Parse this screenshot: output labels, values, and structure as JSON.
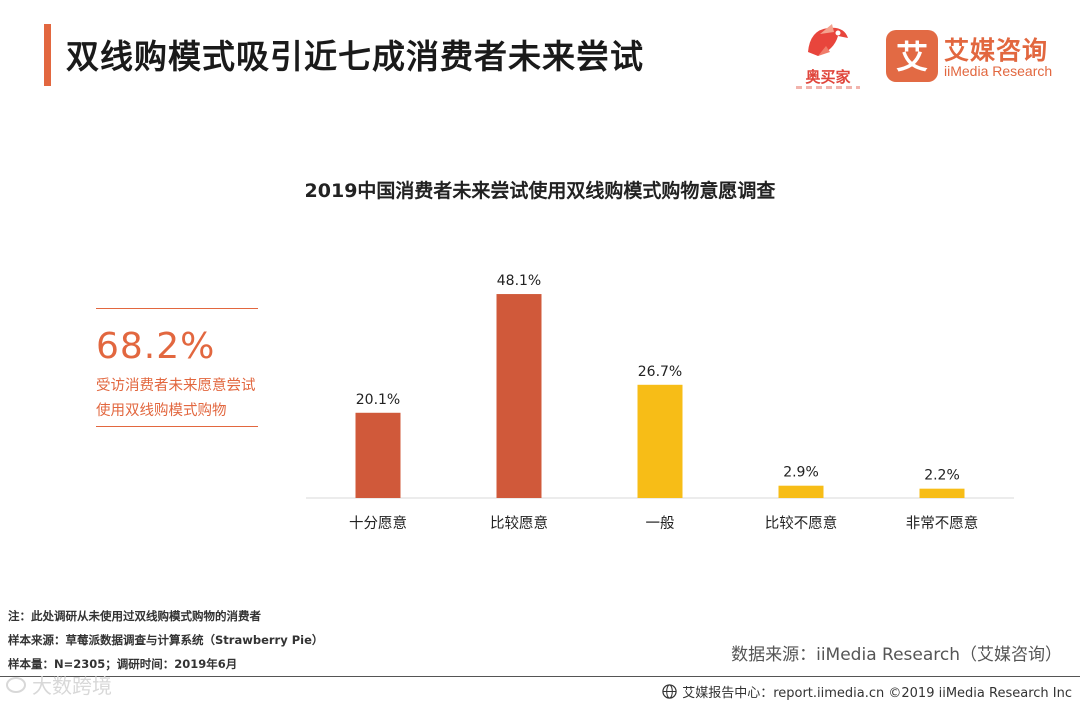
{
  "header": {
    "title": "双线购模式吸引近七成消费者未来尝试",
    "logo_aomaijia": "奥买家",
    "logo_iimedia_cn": "艾媒咨询",
    "logo_iimedia_en": "iiMedia Research",
    "logo_iimedia_badge": "艾"
  },
  "callout": {
    "value": "68.2%",
    "description": "受访消费者未来愿意尝试使用双线购模式购物"
  },
  "colors": {
    "accent": "#e2673f",
    "bar_positive": "#d0593a",
    "bar_neutral": "#f7bd17"
  },
  "chart_data": {
    "type": "bar",
    "title": "2019中国消费者未来尝试使用双线购模式购物意愿调查",
    "categories": [
      "十分愿意",
      "比较愿意",
      "一般",
      "比较不愿意",
      "非常不愿意"
    ],
    "values": [
      20.1,
      48.1,
      26.7,
      2.9,
      2.2
    ],
    "labels": [
      "20.1%",
      "48.1%",
      "26.7%",
      "2.9%",
      "2.2%"
    ],
    "colors": [
      "#d0593a",
      "#d0593a",
      "#f7bd17",
      "#f7bd17",
      "#f7bd17"
    ],
    "ylim": [
      0,
      50
    ],
    "xlabel": "",
    "ylabel": "",
    "grid": false
  },
  "notes": {
    "note": "注：此处调研从未使用过双线购模式购物的消费者",
    "sample_source": "样本来源：草莓派数据调查与计算系统（Strawberry   Pie）",
    "sample_size": "样本量：N=2305；调研时间：2019年6月"
  },
  "source": "数据来源：iiMedia Research（艾媒咨询）",
  "footer": {
    "text": "艾媒报告中心：report.iimedia.cn  ©2019  iiMedia Research  Inc"
  },
  "watermark": "大数跨境"
}
